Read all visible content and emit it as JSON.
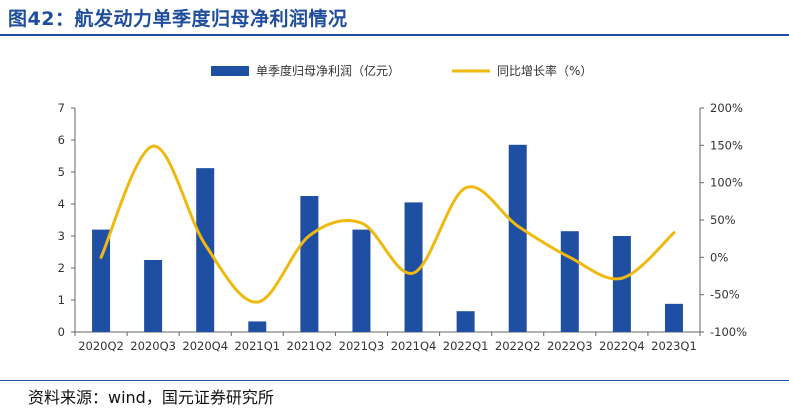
{
  "header": {
    "title": "图42：航发动力单季度归母净利润情况"
  },
  "footer": {
    "source": "资料来源：wind，国元证券研究所"
  },
  "colors": {
    "bar": "#1e4fa3",
    "line": "#f0b90f",
    "axis": "#666666",
    "title": "#1f4e9c"
  },
  "chart_data": {
    "type": "bar",
    "title": "",
    "categories": [
      "2020Q2",
      "2020Q3",
      "2020Q4",
      "2021Q1",
      "2021Q2",
      "2021Q3",
      "2021Q4",
      "2022Q1",
      "2022Q2",
      "2022Q3",
      "2022Q4",
      "2023Q1"
    ],
    "series": [
      {
        "name": "单季度归母净利润（亿元）",
        "type": "bar",
        "axis": "left",
        "values": [
          3.2,
          2.25,
          5.12,
          0.33,
          4.25,
          3.2,
          4.05,
          0.65,
          5.85,
          3.15,
          3.0,
          0.88
        ]
      },
      {
        "name": "同比增长率（%）",
        "type": "line",
        "axis": "right",
        "smooth": true,
        "values": [
          0,
          149,
          17,
          -60,
          29,
          46,
          -21,
          93,
          42,
          0,
          -28,
          33
        ]
      }
    ],
    "left_axis": {
      "min": 0,
      "max": 7,
      "ticks": [
        0,
        1,
        2,
        3,
        4,
        5,
        6,
        7
      ]
    },
    "right_axis": {
      "min": -100,
      "max": 200,
      "ticks": [
        -100,
        -50,
        0,
        50,
        100,
        150,
        200
      ],
      "tick_labels": [
        "-100%",
        "-50%",
        "0%",
        "50%",
        "100%",
        "150%",
        "200%"
      ]
    },
    "legend_position": "top-center",
    "grid": false
  }
}
